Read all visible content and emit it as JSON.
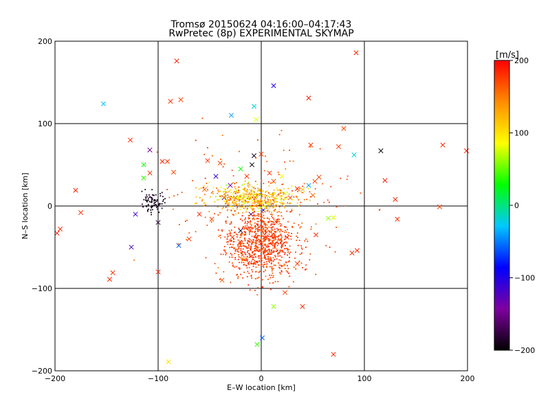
{
  "chart_data": {
    "type": "scatter",
    "title": "Tromsø 20150624 04:16:00–04:17:43",
    "subtitle": "RwPretec (8p) EXPERIMENTAL SKYMAP",
    "xlabel": "E–W location [km]",
    "ylabel": "N–S location [km]",
    "xlim": [
      -200,
      200
    ],
    "ylim": [
      -200,
      200
    ],
    "xticks": [
      -200,
      -100,
      0,
      100,
      200
    ],
    "yticks": [
      -200,
      -100,
      0,
      100,
      200
    ],
    "grid": true,
    "colorbar": {
      "label": "[m/s]",
      "range": [
        -200,
        200
      ],
      "ticks": [
        200,
        100,
        0,
        -100,
        -200
      ],
      "colors": [
        "#000000",
        "#7f00a0",
        "#0000ff",
        "#00c8ff",
        "#00ff00",
        "#ffff00",
        "#ff8c00",
        "#ff0000"
      ]
    },
    "points_x": [
      {
        "x": -82,
        "y": 176,
        "v": 190
      },
      {
        "x": 92,
        "y": 186,
        "v": 185
      },
      {
        "x": -153,
        "y": 124,
        "v": -30
      },
      {
        "x": 12,
        "y": 146,
        "v": -100
      },
      {
        "x": -88,
        "y": 127,
        "v": 180
      },
      {
        "x": -78,
        "y": 129,
        "v": 175
      },
      {
        "x": -29,
        "y": 110,
        "v": -40
      },
      {
        "x": -7,
        "y": 121,
        "v": -20
      },
      {
        "x": -5,
        "y": 105,
        "v": 80
      },
      {
        "x": 46,
        "y": 131,
        "v": 190
      },
      {
        "x": 80,
        "y": 94,
        "v": 170
      },
      {
        "x": 75,
        "y": 72,
        "v": 175
      },
      {
        "x": 48,
        "y": 74,
        "v": 180
      },
      {
        "x": -127,
        "y": 80,
        "v": 185
      },
      {
        "x": -108,
        "y": 68,
        "v": -150
      },
      {
        "x": -108,
        "y": 40,
        "v": 180
      },
      {
        "x": -96,
        "y": 54,
        "v": 185
      },
      {
        "x": -91,
        "y": 54,
        "v": 180
      },
      {
        "x": -114,
        "y": 50,
        "v": 30
      },
      {
        "x": -85,
        "y": 41,
        "v": 170
      },
      {
        "x": -180,
        "y": 19,
        "v": 185
      },
      {
        "x": -175,
        "y": -8,
        "v": 180
      },
      {
        "x": -195,
        "y": -28,
        "v": 185
      },
      {
        "x": -198,
        "y": -33,
        "v": 190
      },
      {
        "x": -147,
        "y": -89,
        "v": 185
      },
      {
        "x": -144,
        "y": -81,
        "v": 180
      },
      {
        "x": -126,
        "y": -50,
        "v": -120
      },
      {
        "x": -122,
        "y": -10,
        "v": -110
      },
      {
        "x": -114,
        "y": 34,
        "v": 40
      },
      {
        "x": -100,
        "y": -20,
        "v": -180
      },
      {
        "x": -80,
        "y": -48,
        "v": -60
      },
      {
        "x": -48,
        "y": -16,
        "v": 170
      },
      {
        "x": -20,
        "y": -30,
        "v": -190
      },
      {
        "x": -10,
        "y": -10,
        "v": -160
      },
      {
        "x": -25,
        "y": 10,
        "v": 150
      },
      {
        "x": -9,
        "y": 50,
        "v": -200
      },
      {
        "x": -7,
        "y": 61,
        "v": -190
      },
      {
        "x": 0,
        "y": 63,
        "v": 175
      },
      {
        "x": 8,
        "y": 40,
        "v": 180
      },
      {
        "x": 12,
        "y": 30,
        "v": 170
      },
      {
        "x": 20,
        "y": 36,
        "v": 90
      },
      {
        "x": 28,
        "y": 10,
        "v": 180
      },
      {
        "x": 35,
        "y": 21,
        "v": 185
      },
      {
        "x": 52,
        "y": 30,
        "v": 175
      },
      {
        "x": 50,
        "y": 13,
        "v": 160
      },
      {
        "x": 40,
        "y": 20,
        "v": 120
      },
      {
        "x": 46,
        "y": 25,
        "v": -40
      },
      {
        "x": 56,
        "y": 35,
        "v": 175
      },
      {
        "x": 90,
        "y": 62,
        "v": -20
      },
      {
        "x": 116,
        "y": 67,
        "v": -200
      },
      {
        "x": 120,
        "y": 31,
        "v": 190
      },
      {
        "x": 130,
        "y": 8,
        "v": 185
      },
      {
        "x": 132,
        "y": -16,
        "v": 180
      },
      {
        "x": 176,
        "y": 74,
        "v": 185
      },
      {
        "x": 199,
        "y": 67,
        "v": 190
      },
      {
        "x": 173,
        "y": -1,
        "v": 175
      },
      {
        "x": 88,
        "y": -57,
        "v": 180
      },
      {
        "x": 93,
        "y": -54,
        "v": 185
      },
      {
        "x": 70,
        "y": -14,
        "v": 80
      },
      {
        "x": 65,
        "y": -15,
        "v": 60
      },
      {
        "x": 53,
        "y": -35,
        "v": 185
      },
      {
        "x": 35,
        "y": -70,
        "v": 180
      },
      {
        "x": 23,
        "y": -105,
        "v": 175
      },
      {
        "x": 12,
        "y": -122,
        "v": 60
      },
      {
        "x": 40,
        "y": -122,
        "v": 185
      },
      {
        "x": 1,
        "y": -160,
        "v": -60
      },
      {
        "x": -4,
        "y": -168,
        "v": 40
      },
      {
        "x": -90,
        "y": -189,
        "v": 100
      },
      {
        "x": 70,
        "y": -180,
        "v": 185
      },
      {
        "x": -17,
        "y": -65,
        "v": 120
      },
      {
        "x": -38,
        "y": -90,
        "v": 165
      },
      {
        "x": -70,
        "y": -40,
        "v": 180
      },
      {
        "x": -100,
        "y": -80,
        "v": 185
      },
      {
        "x": -36,
        "y": 10,
        "v": -170
      },
      {
        "x": -55,
        "y": 20,
        "v": 160
      },
      {
        "x": -60,
        "y": -10,
        "v": 185
      },
      {
        "x": -30,
        "y": 25,
        "v": -140
      },
      {
        "x": -20,
        "y": 45,
        "v": 30
      },
      {
        "x": -44,
        "y": 36,
        "v": -110
      },
      {
        "x": -14,
        "y": 36,
        "v": 180
      },
      {
        "x": 2,
        "y": -5,
        "v": -90
      },
      {
        "x": -5,
        "y": 5,
        "v": 170
      },
      {
        "x": 15,
        "y": -20,
        "v": 150
      },
      {
        "x": 25,
        "y": -38,
        "v": 185
      },
      {
        "x": -28,
        "y": -38,
        "v": 175
      },
      {
        "x": 5,
        "y": -55,
        "v": 160
      },
      {
        "x": -52,
        "y": 55,
        "v": 180
      },
      {
        "x": -40,
        "y": 52,
        "v": 170
      }
    ]
  },
  "colors": {
    "background": "#ffffff",
    "axes": "#000000",
    "grid": "#000000"
  }
}
